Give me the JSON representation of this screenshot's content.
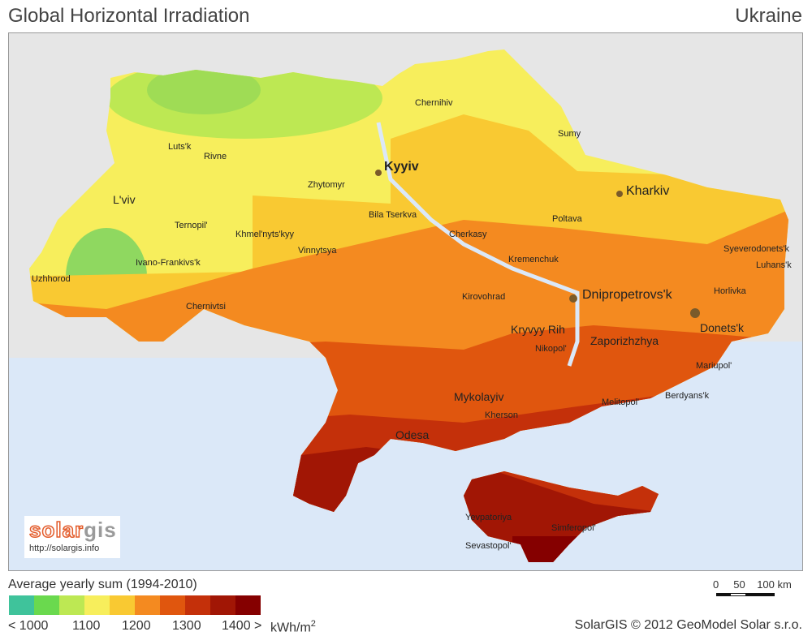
{
  "header": {
    "title": "Global Horizontal Irradiation",
    "country": "Ukraine"
  },
  "map": {
    "sea_color": "#dbe8f8",
    "land_outside_color": "#e6e6e6",
    "cities": [
      "Chernihiv",
      "Sumy",
      "Luts'k",
      "Rivne",
      "Kyyiv",
      "Zhytomyr",
      "Kharkiv",
      "L'viv",
      "Ternopil'",
      "Bila Tserkva",
      "Poltava",
      "Khmel'nyts'kyy",
      "Cherkasy",
      "Syeverodonets'k",
      "Luhans'k",
      "Ivano-Frankivs'k",
      "Vinnytsya",
      "Kremenchuk",
      "Uzhhorod",
      "Kirovohrad",
      "Dnipropetrovs'k",
      "Horlivka",
      "Chernivtsi",
      "Kryvyy Rih",
      "Donets'k",
      "Zaporizhzhya",
      "Nikopol'",
      "Mariupol'",
      "Mykolayiv",
      "Melitopol'",
      "Berdyans'k",
      "Kherson",
      "Odesa",
      "Yevpatoriya",
      "Simferopol'",
      "Sevastopol'"
    ]
  },
  "logo": {
    "text_a": "solar",
    "text_b": "gis",
    "url": "http://solargis.info"
  },
  "legend": {
    "title": "Average yearly sum (1994-2010)",
    "colors": [
      "#3fc39b",
      "#6ad94e",
      "#bde853",
      "#f7ee5c",
      "#f9c932",
      "#f48a20",
      "#e0560e",
      "#c4300a",
      "#a11605",
      "#850000"
    ],
    "labels": [
      "< 1000",
      "1100",
      "1200",
      "1300",
      "1400 >"
    ],
    "unit": "kWh/m",
    "unit_sup": "2"
  },
  "scale": {
    "label": "0     50    100 km"
  },
  "footer": {
    "copyright": "SolarGIS © 2012 GeoModel Solar s.r.o."
  }
}
